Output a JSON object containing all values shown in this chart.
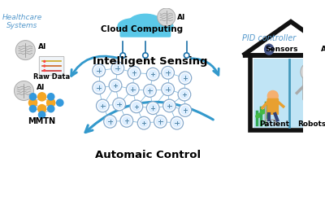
{
  "bg_color": "#ffffff",
  "cloud_text": "Cloud Computing",
  "cloud_ai_label": "AI",
  "intelligent_sensing_text": "Intelligent Sensing",
  "automatic_control_text": "Automaic Control",
  "healthcare_label": "Healthcare\nSystems",
  "pid_label": "PID controller",
  "raw_data_label": "Raw Data",
  "mmtn_label": "MMTN",
  "ai_label": "AI",
  "sensors_label": "Sensors",
  "patient_label": "Patient",
  "robots_label": "Robots",
  "blue_color": "#5bc8e8",
  "dark_blue": "#1a6fa8",
  "text_blue": "#5599cc",
  "arrow_blue": "#3399cc",
  "house_black": "#111111",
  "orange_color": "#f5a623",
  "dot_blue": "#3399dd",
  "light_blue_fill": "#c5e8f5",
  "net_line_color": "#88bbdd",
  "net_node_color": "#ddeeff"
}
